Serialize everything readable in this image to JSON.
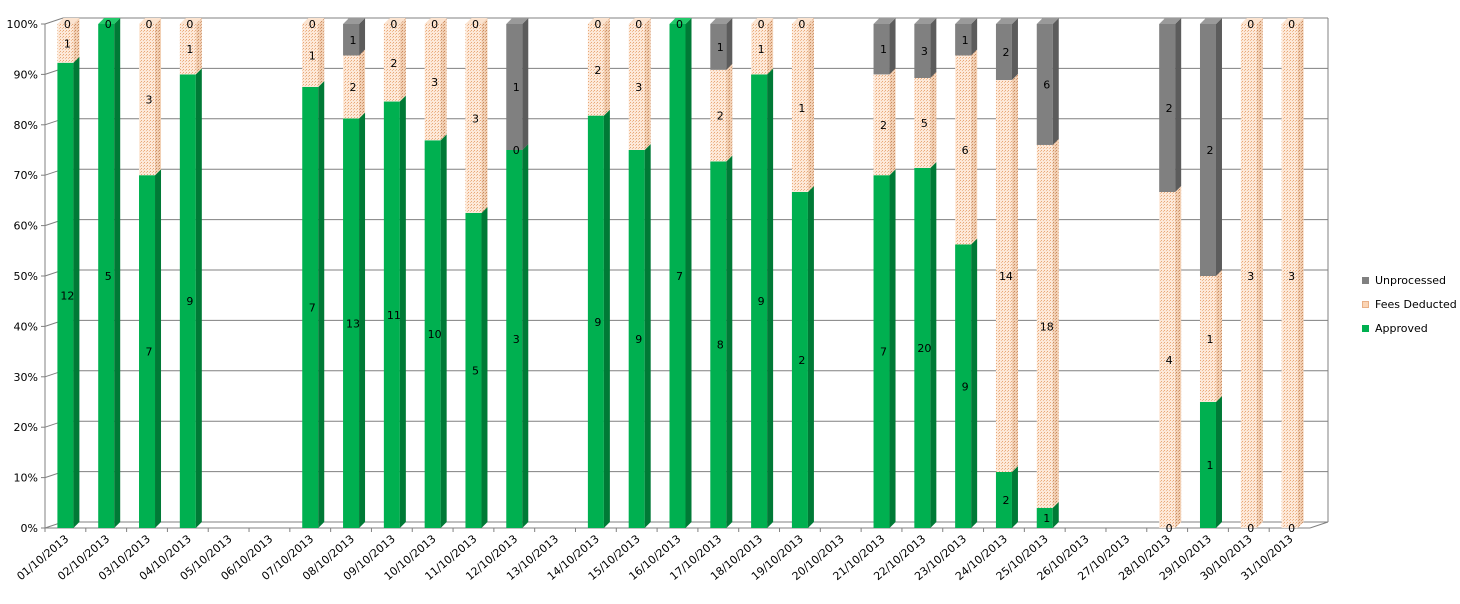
{
  "chart_data": {
    "type": "bar",
    "stacked": "percent",
    "three_d": true,
    "categories": [
      "01/10/2013",
      "02/10/2013",
      "03/10/2013",
      "04/10/2013",
      "05/10/2013",
      "06/10/2013",
      "07/10/2013",
      "08/10/2013",
      "09/10/2013",
      "10/10/2013",
      "11/10/2013",
      "12/10/2013",
      "13/10/2013",
      "14/10/2013",
      "15/10/2013",
      "16/10/2013",
      "17/10/2013",
      "18/10/2013",
      "19/10/2013",
      "20/10/2013",
      "21/10/2013",
      "22/10/2013",
      "23/10/2013",
      "24/10/2013",
      "25/10/2013",
      "26/10/2013",
      "27/10/2013",
      "28/10/2013",
      "29/10/2013",
      "30/10/2013",
      "31/10/2013"
    ],
    "series": [
      {
        "name": "Approved",
        "color": "#00b050",
        "values": [
          12,
          5,
          7,
          9,
          null,
          null,
          7,
          13,
          11,
          10,
          5,
          3,
          null,
          9,
          9,
          7,
          8,
          9,
          2,
          null,
          7,
          20,
          9,
          2,
          1,
          null,
          null,
          0,
          1,
          0,
          0
        ]
      },
      {
        "name": "Fees Deducted",
        "color": "#fbd5b5",
        "values": [
          1,
          null,
          3,
          1,
          null,
          null,
          1,
          2,
          2,
          3,
          3,
          null,
          null,
          2,
          3,
          null,
          2,
          1,
          1,
          null,
          2,
          5,
          6,
          14,
          18,
          null,
          null,
          4,
          1,
          3,
          3
        ]
      },
      {
        "name": "Unprocessed",
        "color": "#808080",
        "values": [
          0,
          0,
          0,
          0,
          null,
          null,
          0,
          1,
          0,
          0,
          0,
          1,
          null,
          0,
          0,
          0,
          1,
          0,
          0,
          null,
          1,
          3,
          1,
          2,
          6,
          null,
          null,
          2,
          2,
          0,
          0
        ]
      }
    ],
    "approved_labels": [
      "12",
      "5",
      "7",
      "9",
      "",
      "",
      "7",
      "13",
      "11",
      "10",
      "5",
      "3",
      "",
      "9",
      "9",
      "7",
      "8",
      "9",
      "2",
      "",
      "7",
      "20",
      "9",
      "2",
      "1",
      "",
      "",
      "0",
      "1",
      "0",
      "0"
    ],
    "fees_labels": [
      "1",
      "",
      "3",
      "1",
      "",
      "",
      "1",
      "2",
      "2",
      "3",
      "3",
      "",
      "",
      "2",
      "3",
      "",
      "2",
      "1",
      "1",
      "",
      "2",
      "5",
      "6",
      "14",
      "18",
      "",
      "",
      "4",
      "1",
      "3",
      "3"
    ],
    "unprocessed_labels": [
      "0",
      "0",
      "0",
      "0",
      "",
      "",
      "0",
      "1",
      "0",
      "0",
      "0",
      "1",
      "",
      "0",
      "0",
      "0",
      "1",
      "0",
      "0",
      "",
      "1",
      "3",
      "1",
      "2",
      "6",
      "",
      "",
      "2",
      "2",
      "0",
      "0"
    ],
    "extra_labels": [
      {
        "category": "12/10/2013",
        "text": "0",
        "at_percent": 75
      }
    ],
    "yticks": [
      "0%",
      "10%",
      "20%",
      "30%",
      "40%",
      "50%",
      "60%",
      "70%",
      "80%",
      "90%",
      "100%"
    ],
    "ylim": [
      0,
      100
    ],
    "grid": true,
    "legend_position": "right",
    "title": "",
    "xlabel": "",
    "ylabel": ""
  },
  "legend": [
    {
      "label": "Unprocessed",
      "color": "#808080"
    },
    {
      "label": "Fees Deducted",
      "color": "#fbd5b5"
    },
    {
      "label": "Approved",
      "color": "#00b050"
    }
  ]
}
